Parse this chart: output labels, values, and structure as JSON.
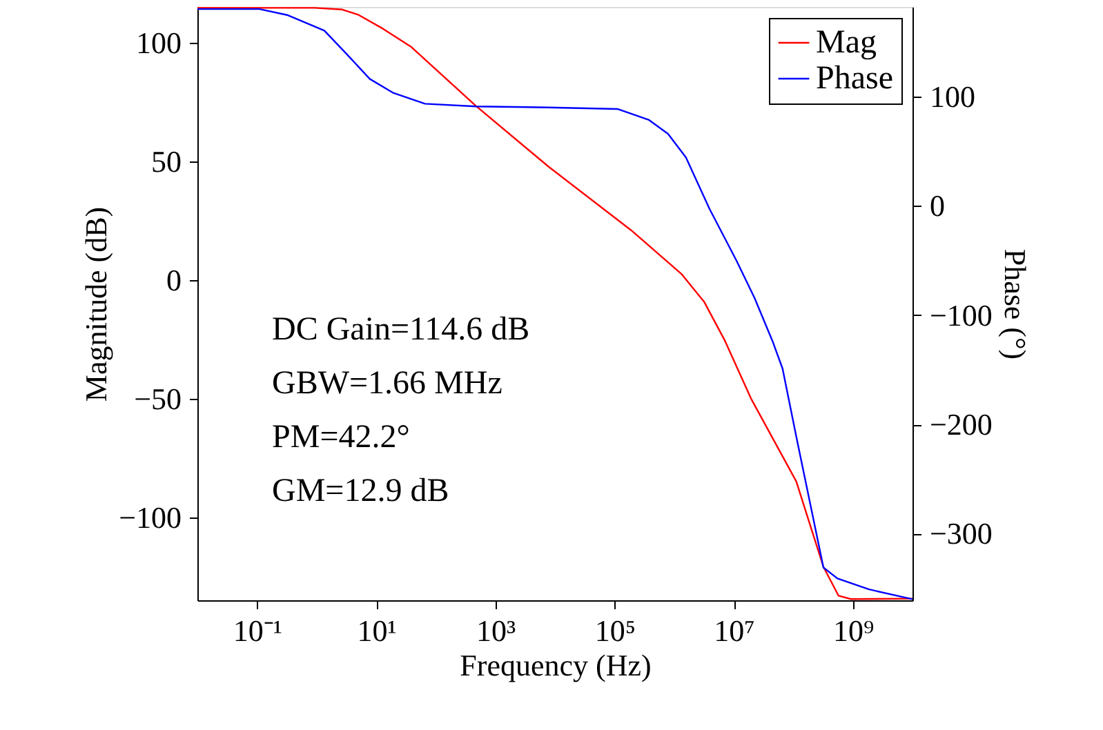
{
  "chart_data": {
    "type": "line",
    "xlabel": "Frequency (Hz)",
    "ylabel": "Magnitude (dB)",
    "y2label": "Phase (°)",
    "log": "x",
    "xlim": [
      0.01,
      10000000000.0
    ],
    "xticks": [
      {
        "value": 0.1,
        "label": "10⁻¹"
      },
      {
        "value": 10,
        "label": "10¹"
      },
      {
        "value": 1000,
        "label": "10³"
      },
      {
        "value": 100000,
        "label": "10⁵"
      },
      {
        "value": 10000000,
        "label": "10⁷"
      },
      {
        "value": 1000000000,
        "label": "10⁹"
      }
    ],
    "ylim": [
      -135,
      115
    ],
    "yticks": [
      {
        "value": -100,
        "label": "−100"
      },
      {
        "value": -50,
        "label": "−50"
      },
      0,
      50,
      100
    ],
    "y2lim": [
      -361,
      182
    ],
    "y2ticks": [
      {
        "value": -300,
        "label": "−300"
      },
      {
        "value": -200,
        "label": "−200"
      },
      {
        "value": -100,
        "label": "−100"
      },
      0,
      100
    ],
    "grid": false,
    "legend": "top right",
    "series": [
      {
        "name": "Mag",
        "color": "#ff0000",
        "x": [
          0.01,
          0.93,
          2.7,
          5.1,
          13,
          38,
          470,
          7800,
          190000,
          1350000,
          3200000,
          7100000,
          19500000,
          112000000,
          320000000,
          575000000,
          930000000,
          10000000000.0
        ],
        "values": [
          114.6,
          114.6,
          113.9,
          111.6,
          105.8,
          98.3,
          73.3,
          47.7,
          20.9,
          2.3,
          -9.3,
          -25.6,
          -50,
          -84.9,
          -120.9,
          -133.1,
          -134.5,
          -134.3
        ]
      },
      {
        "name": "Phase",
        "color": "#0000ff",
        "axis": "y2",
        "x": [
          0.01,
          0.11,
          0.32,
          1.35,
          3.2,
          7.8,
          19,
          66,
          470,
          7800,
          112000,
          380000,
          790000,
          1580000,
          3900000,
          11200000,
          22400000,
          44700000,
          66000000,
          112000000,
          320000000,
          550000000,
          1860000000,
          10000000000.0
        ],
        "values": [
          180,
          180,
          174.6,
          160.3,
          138.8,
          116.1,
          103.5,
          93.4,
          90.9,
          90,
          88.6,
          78.5,
          65.8,
          44.2,
          -2.5,
          -50.5,
          -84.5,
          -123.7,
          -149,
          -211,
          -331,
          -341,
          -351,
          -360
        ]
      }
    ],
    "annotations": [
      "DC Gain=114.6 dB",
      "GBW=1.66 MHz",
      "PM=42.2°",
      "GM=12.9 dB"
    ]
  }
}
